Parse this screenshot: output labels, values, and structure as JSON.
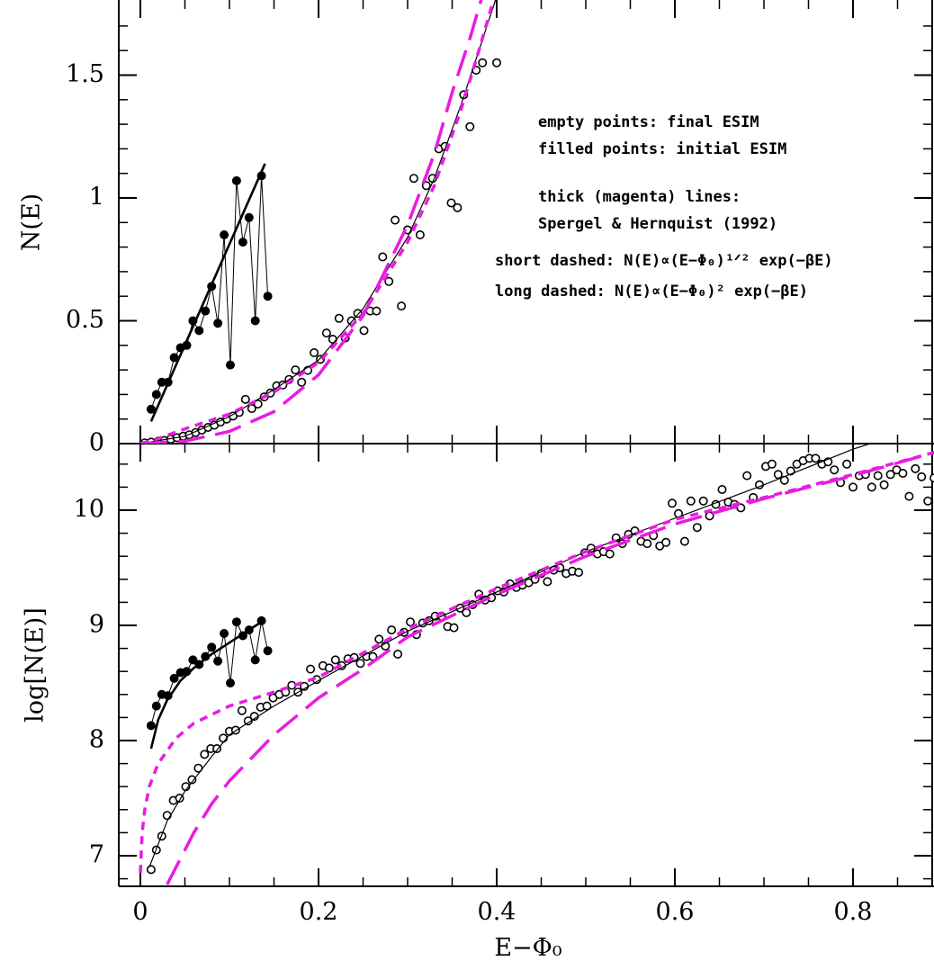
{
  "chart_data": [
    {
      "type": "scatter",
      "panel": "top",
      "ylabel": "N(E)",
      "xlim": [
        -0.03,
        0.9
      ],
      "ylim": [
        0,
        1.8
      ],
      "ytick_labels": [
        "0",
        "0.5",
        "1",
        "1.5"
      ],
      "ytick_values": [
        0,
        0.5,
        1,
        1.5
      ],
      "legend_lines": [
        "empty points: final ESIM",
        "filled points: initial ESIM",
        "thick (magenta) lines:",
        "Spergel & Hernquist (1992)",
        "short dashed: N(E)∝(E−Φ₀)¹ᐟ² exp(−βE)",
        "long dashed: N(E)∝(E−Φ₀)² exp(−βE)"
      ],
      "legend_placement": "upper-right",
      "series": [
        {
          "name": "filled points: initial ESIM",
          "marker": "filled-circle",
          "connected": true,
          "x": [
            0.012,
            0.018,
            0.024,
            0.031,
            0.038,
            0.045,
            0.052,
            0.059,
            0.066,
            0.073,
            0.08,
            0.087,
            0.094,
            0.101,
            0.108,
            0.115,
            0.122,
            0.129,
            0.136,
            0.143
          ],
          "y": [
            0.14,
            0.2,
            0.25,
            0.25,
            0.35,
            0.39,
            0.4,
            0.5,
            0.46,
            0.54,
            0.64,
            0.49,
            0.85,
            0.32,
            1.07,
            0.82,
            0.92,
            0.5,
            1.09,
            0.6
          ]
        },
        {
          "name": "initial ESIM fit",
          "marker": "none",
          "line": "solid-thick",
          "x": [
            0.012,
            0.14
          ],
          "y": [
            0.09,
            1.14
          ]
        },
        {
          "name": "empty points: final ESIM",
          "marker": "open-circle",
          "x": [
            0.005,
            0.012,
            0.02,
            0.027,
            0.034,
            0.041,
            0.048,
            0.055,
            0.062,
            0.069,
            0.076,
            0.083,
            0.09,
            0.097,
            0.104,
            0.111,
            0.118,
            0.125,
            0.132,
            0.139,
            0.146,
            0.153,
            0.16,
            0.167,
            0.174,
            0.181,
            0.188,
            0.195,
            0.202,
            0.209,
            0.216,
            0.223,
            0.23,
            0.237,
            0.244,
            0.251,
            0.258,
            0.265,
            0.272,
            0.279,
            0.286,
            0.293,
            0.3,
            0.307,
            0.314,
            0.321,
            0.328,
            0.335,
            0.342,
            0.349,
            0.356,
            0.363,
            0.37,
            0.377,
            0.384,
            0.4
          ],
          "y": [
            0.003,
            0.006,
            0.01,
            0.013,
            0.018,
            0.024,
            0.03,
            0.036,
            0.045,
            0.055,
            0.066,
            0.075,
            0.088,
            0.1,
            0.112,
            0.127,
            0.18,
            0.143,
            0.161,
            0.19,
            0.206,
            0.235,
            0.239,
            0.261,
            0.3,
            0.25,
            0.298,
            0.37,
            0.343,
            0.45,
            0.425,
            0.51,
            0.43,
            0.5,
            0.53,
            0.46,
            0.54,
            0.54,
            0.76,
            0.66,
            0.91,
            0.56,
            0.87,
            1.08,
            0.85,
            1.05,
            1.08,
            1.2,
            1.21,
            0.98,
            0.96,
            1.42,
            1.29,
            1.52,
            1.55,
            1.55
          ]
        },
        {
          "name": "final ESIM fit",
          "marker": "none",
          "line": "solid-thin",
          "x": [
            0.0,
            0.05,
            0.1,
            0.15,
            0.2,
            0.25,
            0.3,
            0.33,
            0.36,
            0.38,
            0.4
          ],
          "y": [
            0.0,
            0.03,
            0.11,
            0.22,
            0.34,
            0.55,
            0.84,
            1.08,
            1.38,
            1.6,
            1.82
          ]
        },
        {
          "name": "short dashed",
          "marker": "none",
          "line": "magenta-short-dash",
          "x": [
            0.0,
            0.02,
            0.05,
            0.1,
            0.15,
            0.2,
            0.25,
            0.3,
            0.33,
            0.36,
            0.38,
            0.4
          ],
          "y": [
            0.0,
            0.02,
            0.06,
            0.12,
            0.21,
            0.33,
            0.53,
            0.82,
            1.05,
            1.36,
            1.6,
            1.85
          ]
        },
        {
          "name": "long dashed",
          "marker": "none",
          "line": "magenta-long-dash",
          "x": [
            0.0,
            0.05,
            0.1,
            0.15,
            0.2,
            0.25,
            0.3,
            0.33,
            0.35,
            0.37,
            0.39
          ],
          "y": [
            0.0,
            0.01,
            0.05,
            0.13,
            0.28,
            0.52,
            0.89,
            1.18,
            1.43,
            1.65,
            1.9
          ]
        }
      ]
    },
    {
      "type": "scatter",
      "panel": "bottom",
      "xlabel": "E−Φ₀",
      "ylabel": "log[N(E)]",
      "xlim": [
        -0.03,
        0.9
      ],
      "ylim": [
        6.75,
        10.6
      ],
      "xtick_labels": [
        "0",
        "0.2",
        "0.4",
        "0.6",
        "0.8"
      ],
      "xtick_values": [
        0,
        0.2,
        0.4,
        0.6,
        0.8
      ],
      "ytick_labels": [
        "7",
        "8",
        "9",
        "10"
      ],
      "ytick_values": [
        7,
        8,
        9,
        10
      ],
      "series": [
        {
          "name": "filled points: initial ESIM",
          "marker": "filled-circle",
          "connected": true,
          "x": [
            0.012,
            0.018,
            0.024,
            0.031,
            0.038,
            0.045,
            0.052,
            0.059,
            0.066,
            0.073,
            0.08,
            0.087,
            0.094,
            0.101,
            0.108,
            0.115,
            0.122,
            0.129,
            0.136,
            0.143
          ],
          "y": [
            8.13,
            8.3,
            8.4,
            8.39,
            8.54,
            8.59,
            8.6,
            8.7,
            8.66,
            8.73,
            8.81,
            8.69,
            8.93,
            8.5,
            9.03,
            8.91,
            8.96,
            8.7,
            9.04,
            8.78
          ]
        },
        {
          "name": "initial ESIM fit",
          "marker": "none",
          "line": "solid-thick",
          "x": [
            0.012,
            0.02,
            0.03,
            0.045,
            0.06,
            0.08,
            0.1,
            0.12,
            0.14
          ],
          "y": [
            7.93,
            8.18,
            8.35,
            8.52,
            8.63,
            8.75,
            8.85,
            8.95,
            9.05
          ]
        },
        {
          "name": "empty points: final ESIM",
          "marker": "open-circle",
          "x": [
            0.012,
            0.018,
            0.024,
            0.03,
            0.037,
            0.044,
            0.051,
            0.058,
            0.065,
            0.072,
            0.079,
            0.086,
            0.093,
            0.1,
            0.107,
            0.114,
            0.121,
            0.128,
            0.135,
            0.142,
            0.149,
            0.156,
            0.163,
            0.17,
            0.177,
            0.184,
            0.191,
            0.198,
            0.205,
            0.212,
            0.219,
            0.226,
            0.233,
            0.24,
            0.247,
            0.254,
            0.261,
            0.268,
            0.275,
            0.282,
            0.289,
            0.296,
            0.303,
            0.31,
            0.317,
            0.324,
            0.331,
            0.338,
            0.345,
            0.352,
            0.359,
            0.366,
            0.373,
            0.38,
            0.387,
            0.394,
            0.401,
            0.408,
            0.415,
            0.422,
            0.429,
            0.436,
            0.443,
            0.45,
            0.457,
            0.464,
            0.471,
            0.478,
            0.485,
            0.492,
            0.499,
            0.506,
            0.513,
            0.52,
            0.527,
            0.534,
            0.541,
            0.548,
            0.555,
            0.562,
            0.569,
            0.576,
            0.583,
            0.59,
            0.597,
            0.604,
            0.611,
            0.618,
            0.625,
            0.632,
            0.639,
            0.646,
            0.653,
            0.66,
            0.667,
            0.674,
            0.681,
            0.688,
            0.695,
            0.702,
            0.709,
            0.716,
            0.723,
            0.73,
            0.737,
            0.744,
            0.751,
            0.758,
            0.765,
            0.772,
            0.779,
            0.786,
            0.793,
            0.8,
            0.807,
            0.814,
            0.821,
            0.828,
            0.835,
            0.842,
            0.849,
            0.856,
            0.863,
            0.87,
            0.877,
            0.884,
            0.891,
            0.898
          ],
          "y": [
            6.88,
            7.05,
            7.17,
            7.35,
            7.48,
            7.5,
            7.6,
            7.66,
            7.76,
            7.88,
            7.93,
            7.93,
            8.02,
            8.08,
            8.09,
            8.26,
            8.17,
            8.21,
            8.29,
            8.3,
            8.37,
            8.4,
            8.42,
            8.48,
            8.42,
            8.47,
            8.62,
            8.53,
            8.65,
            8.63,
            8.7,
            8.65,
            8.71,
            8.72,
            8.67,
            8.73,
            8.73,
            8.88,
            8.82,
            8.96,
            8.75,
            8.94,
            9.03,
            8.92,
            9.02,
            9.04,
            9.08,
            9.08,
            8.99,
            8.98,
            9.15,
            9.11,
            9.18,
            9.27,
            9.22,
            9.24,
            9.3,
            9.29,
            9.36,
            9.33,
            9.35,
            9.37,
            9.4,
            9.45,
            9.38,
            9.48,
            9.5,
            9.45,
            9.47,
            9.46,
            9.63,
            9.67,
            9.62,
            9.64,
            9.62,
            9.76,
            9.71,
            9.79,
            9.82,
            9.73,
            9.71,
            9.78,
            9.69,
            9.72,
            10.06,
            9.97,
            9.73,
            10.08,
            9.85,
            10.08,
            9.95,
            10.05,
            10.18,
            10.07,
            10.05,
            10.02,
            10.3,
            10.11,
            10.22,
            10.38,
            10.4,
            10.31,
            10.26,
            10.34,
            10.4,
            10.43,
            10.45,
            10.45,
            10.4,
            10.42,
            10.35,
            10.24,
            10.4,
            10.2,
            10.3,
            10.31,
            10.2,
            10.3,
            10.22,
            10.31,
            10.35,
            10.32,
            10.12,
            10.36,
            10.29,
            10.08,
            10.28,
            10.38
          ]
        },
        {
          "name": "final ESIM fit",
          "marker": "none",
          "line": "solid-thin",
          "x": [
            0.01,
            0.02,
            0.03,
            0.05,
            0.08,
            0.1,
            0.15,
            0.2,
            0.3,
            0.4,
            0.5,
            0.6,
            0.7,
            0.8,
            0.82
          ],
          "y": [
            6.9,
            7.1,
            7.3,
            7.56,
            7.86,
            8.05,
            8.3,
            8.52,
            8.95,
            9.29,
            9.64,
            9.93,
            10.22,
            10.53,
            10.58
          ]
        },
        {
          "name": "short dashed",
          "marker": "none",
          "line": "magenta-short-dash",
          "x": [
            0.0,
            0.002,
            0.005,
            0.01,
            0.02,
            0.04,
            0.06,
            0.1,
            0.15,
            0.2,
            0.3,
            0.4,
            0.5,
            0.6,
            0.7,
            0.8,
            0.9
          ],
          "y": [
            6.85,
            7.2,
            7.4,
            7.6,
            7.8,
            8.02,
            8.15,
            8.3,
            8.42,
            8.55,
            8.97,
            9.32,
            9.64,
            9.92,
            10.11,
            10.31,
            10.52
          ]
        },
        {
          "name": "long dashed",
          "marker": "none",
          "line": "magenta-long-dash",
          "x": [
            0.03,
            0.04,
            0.06,
            0.08,
            0.1,
            0.15,
            0.2,
            0.25,
            0.3,
            0.4,
            0.5,
            0.6,
            0.7,
            0.8,
            0.9
          ],
          "y": [
            6.75,
            6.9,
            7.2,
            7.45,
            7.65,
            8.05,
            8.37,
            8.62,
            8.9,
            9.27,
            9.6,
            9.88,
            10.1,
            10.3,
            10.52
          ]
        }
      ]
    }
  ]
}
